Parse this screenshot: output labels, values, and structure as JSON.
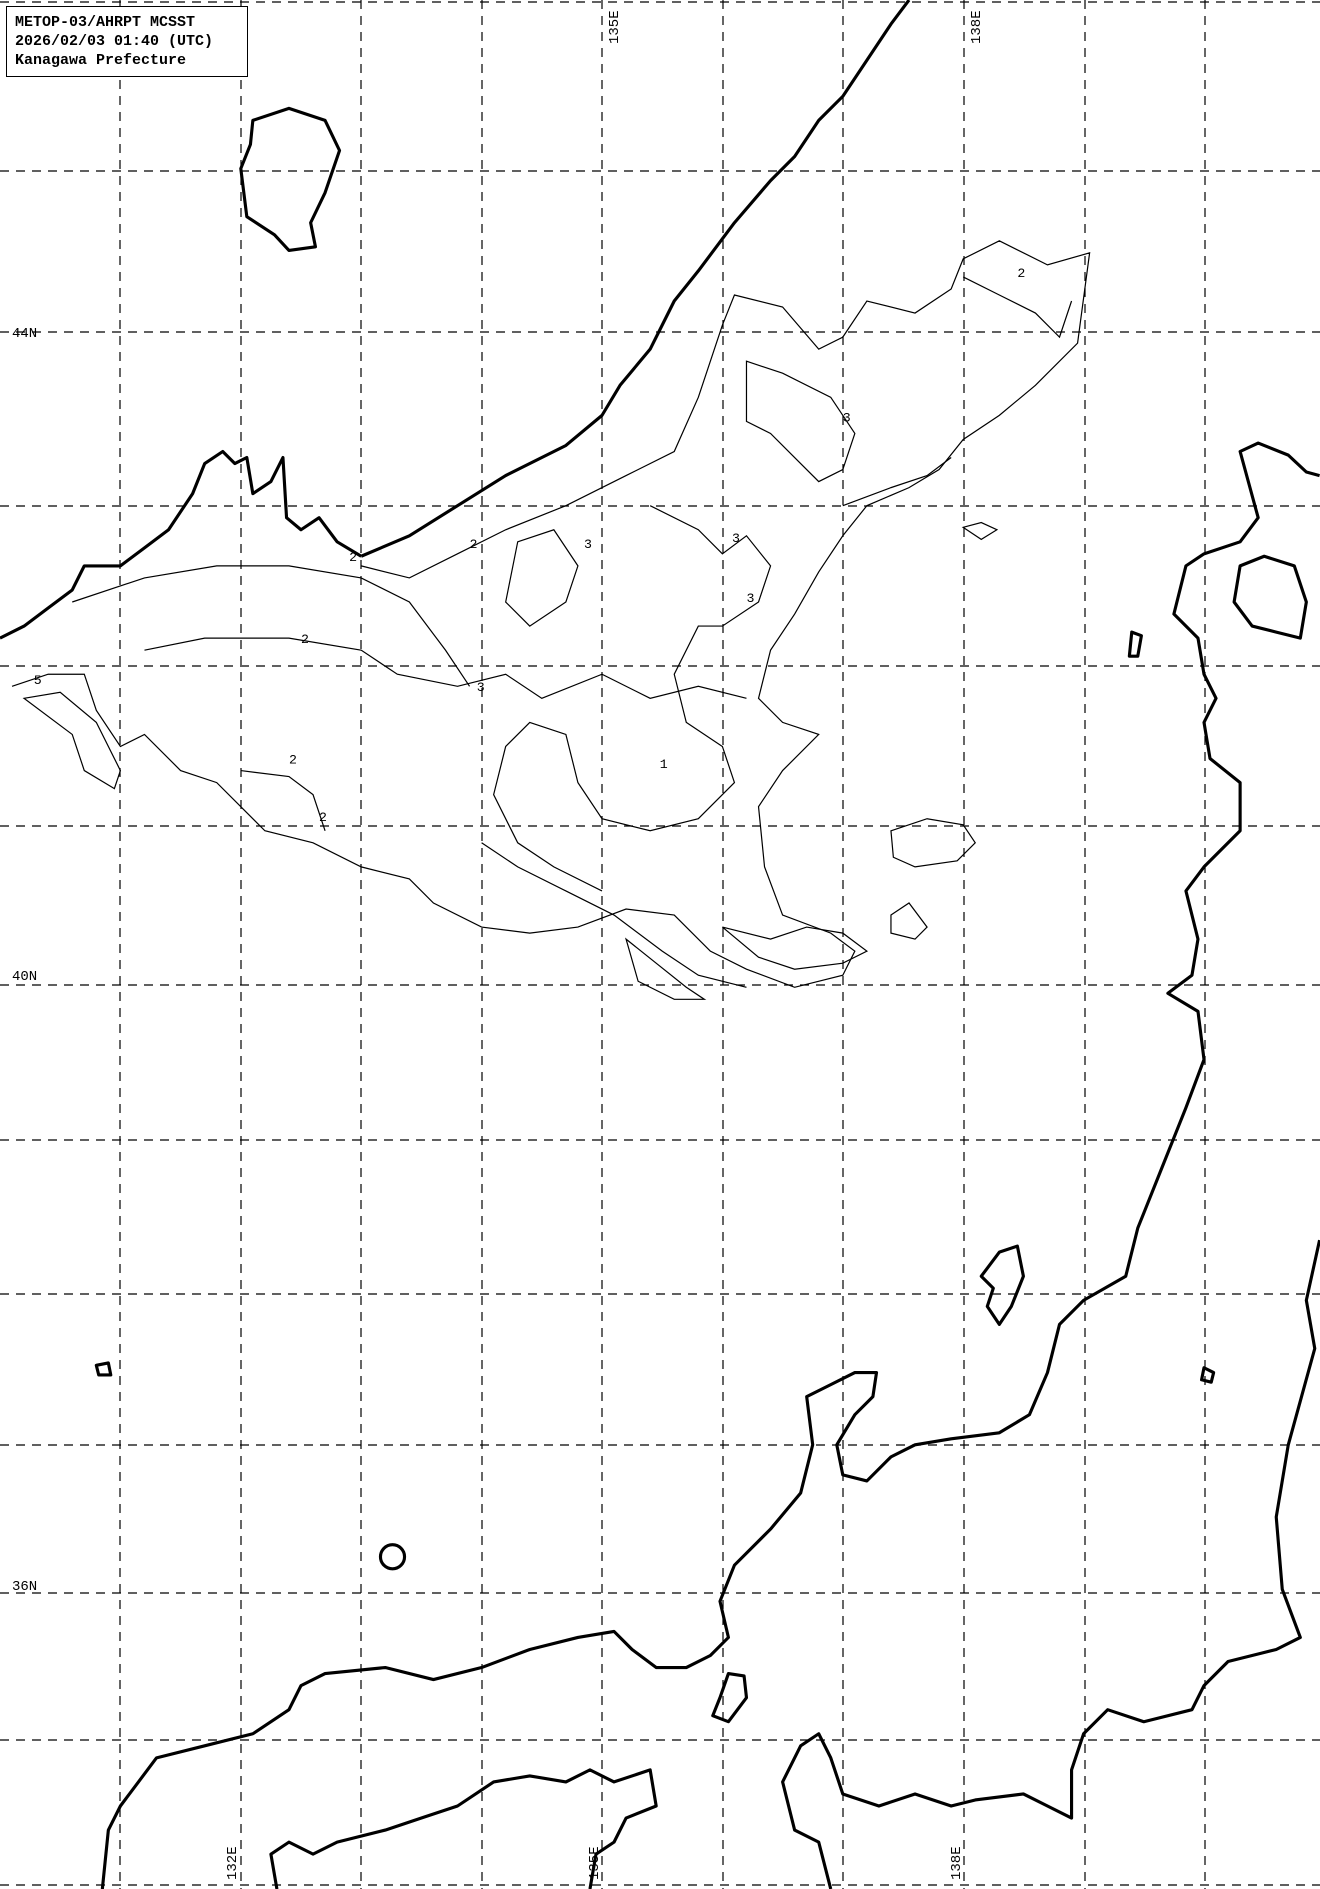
{
  "header": {
    "line1": "METOP-03/AHRPT MCSST",
    "line2": "2026/02/03 01:40 (UTC)",
    "line3": "Kanagawa Prefecture"
  },
  "map": {
    "lat_labels": [
      "44N",
      "40N",
      "36N"
    ],
    "lon_labels_top": [
      "135E",
      "138E"
    ],
    "lon_labels_bottom": [
      "132E",
      "135E",
      "138E"
    ],
    "contour_labels": [
      "2",
      "2",
      "3",
      "3",
      "2",
      "3",
      "5",
      "2",
      "3",
      "2",
      "1",
      "3",
      "2"
    ],
    "colors": {
      "line": "#000000",
      "background": "#ffffff"
    }
  }
}
